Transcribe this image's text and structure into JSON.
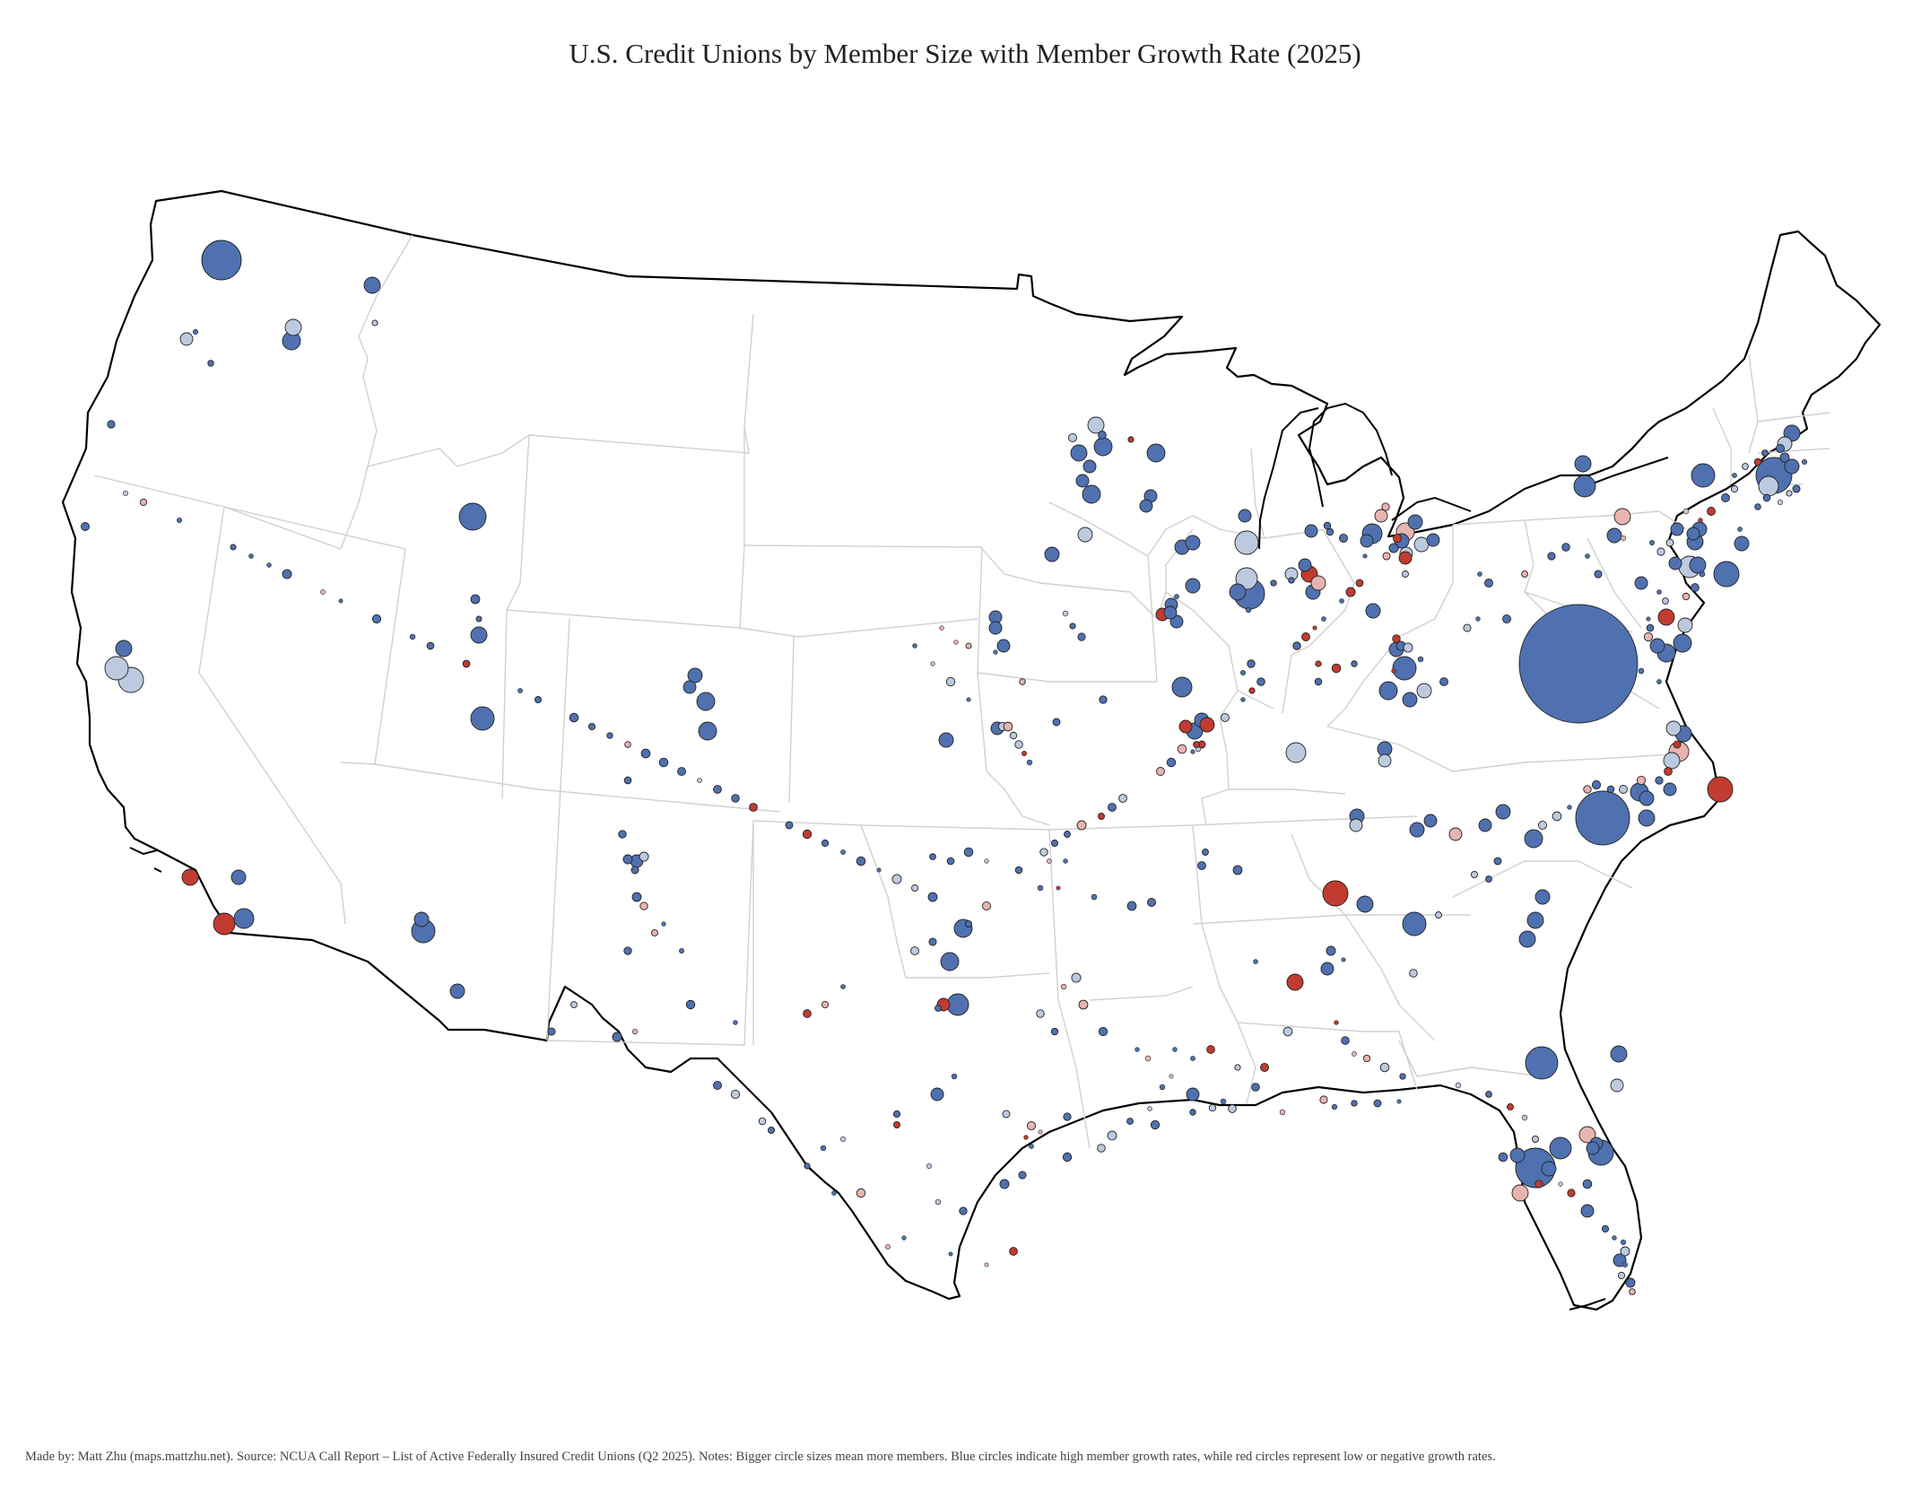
{
  "title": "U.S. Credit Unions by Member Size with Member Growth Rate (2025)",
  "footnote": "Made by: Matt Zhu (maps.mattzhu.net). Source: NCUA Call Report – List of Active Federally Insured Credit Unions (Q2 2025). Notes: Bigger circle sizes mean more members. Blue circles indicate high member growth rates, while red circles represent low or negative growth rates.",
  "colors": {
    "high_growth": "#4f71b0",
    "moderate_growth": "#bccadf",
    "low_growth": "#e8b4b0",
    "negative_growth": "#c23b30",
    "outline": "#000000",
    "state_border": "#cfcfcf"
  }
}
